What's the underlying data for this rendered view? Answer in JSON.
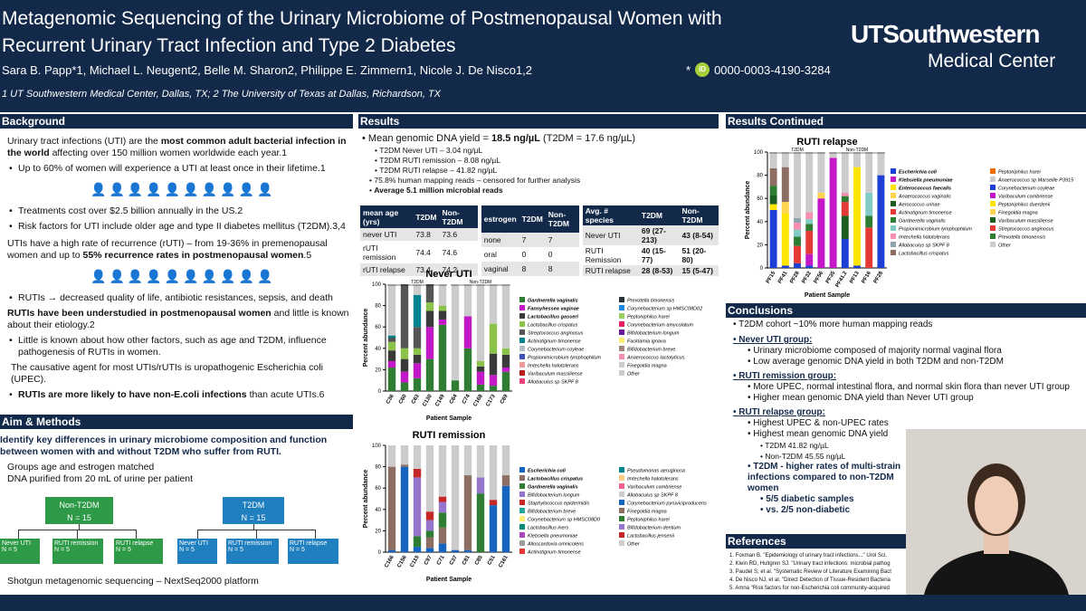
{
  "header": {
    "title_line1": "Metagenomic Sequencing of the Urinary Microbiome of Postmenopausal Women with",
    "title_line2": "Recurrent Urinary Tract Infection and Type 2 Diabetes",
    "authors": "Sara B. Papp*1, Michael L. Neugent2, Belle M. Sharon2, Philippe E. Zimmern1, Nicole J. De Nisco1,2",
    "affiliations": "1 UT Southwestern Medical Center, Dallas, TX; 2 The University of Texas at Dallas, Richardson, TX",
    "orcid_star": "*",
    "orcid_badge": "iD",
    "orcid": "0000-0003-4190-3284",
    "logo_line1": "UTSouthwestern",
    "logo_line2": "Medical Center"
  },
  "background": {
    "heading": "Background",
    "p1a": "Urinary tract infections (UTI) are the ",
    "p1b": "most common adult bacterial infection in the world",
    "p1c": " affecting over 150 million women worldwide each year.1",
    "b1": "Up to 60% of women will experience a UTI at least once in their lifetime.1",
    "b2": "Treatments cost over $2.5 billion annually in the US.2",
    "b3": "Risk factors for UTI include older age and type II diabetes mellitus (T2DM).3,4",
    "p2a": "UTIs have a high rate of recurrence (rUTI) – from 19-36% in premenopausal women and up to ",
    "p2b": "55% recurrence rates in postmenopausal women",
    "p2c": ".5",
    "b4": "RUTIs → decreased quality of life, antibiotic resistances, sepsis, and death",
    "p3a": "RUTIs have been understudied in postmenopausal women",
    "p3b": " and little is known about their etiology.2",
    "b5": "Little is known about how other factors, such as age and T2DM, influence pathogenesis of RUTIs in women.",
    "p4": "The causative agent for most UTIs/rUTIs is uropathogenic Escherichia coli (UPEC).",
    "b6a": "RUTIs are more likely to have non-E.coli infections",
    "b6b": " than acute UTIs.6"
  },
  "aim": {
    "heading": "Aim & Methods",
    "p1": "Identify key differences in urinary microbiome composition and function between women with and without T2DM who suffer from RUTI.",
    "m1": "Groups age and estrogen matched",
    "m2": "DNA purified from 20 mL of urine per patient",
    "nont2dm": "Non-T2DM",
    "nont2dm_n": "N = 15",
    "t2dm": "T2DM",
    "t2dm_n": "N = 15",
    "g1": "Never UTI",
    "g1n": "N = 5",
    "g2": "RUTI remission",
    "g2n": "N = 5",
    "g3": "RUTI relapse",
    "g3n": "N = 5",
    "shotgun": "Shotgun metagenomic sequencing – NextSeq2000 platform"
  },
  "results": {
    "heading": "Results",
    "yield_a": "Mean genomic DNA yield = ",
    "yield_b": "18.5 ng/µL",
    "yield_c": " (T2DM = 17.6 ng/µL)",
    "s1": "T2DM Never UTI – 3.04 ng/µL",
    "s2": "T2DM RUTI remission – 8.08 ng/µL",
    "s3": "T2DM RUTI relapse – 41.82 ng/µL",
    "s4": "75.8% human mapping reads – censored for further analysis",
    "s5": "Average 5.1 million microbial reads",
    "table1": {
      "head": [
        "mean age (yrs)",
        "T2DM",
        "Non-T2DM"
      ],
      "rows": [
        [
          "never UTI",
          "73.8",
          "73.6"
        ],
        [
          "rUTI remission",
          "74.4",
          "74.6"
        ],
        [
          "rUTI relapse",
          "73.4",
          "74.2"
        ]
      ]
    },
    "table2": {
      "head": [
        "estrogen",
        "T2DM",
        "Non-T2DM"
      ],
      "rows": [
        [
          "none",
          "7",
          "7"
        ],
        [
          "oral",
          "0",
          "0"
        ],
        [
          "vaginal",
          "8",
          "8"
        ]
      ]
    },
    "table3": {
      "head": [
        "Avg. # species",
        "T2DM",
        "Non-T2DM"
      ],
      "rows": [
        [
          "Never UTI",
          "69 (27-213)",
          "43 (8-54)"
        ],
        [
          "RUTI Remission",
          "40 (15-77)",
          "51 (20-80)"
        ],
        [
          "RUTI relapse",
          "28 (8-53)",
          "15 (5-47)"
        ]
      ]
    }
  },
  "chart_data": [
    {
      "type": "bar",
      "stacked": true,
      "title": "Never UTI",
      "xlabel": "Patient Sample",
      "ylabel": "Percent abundance",
      "ylim": [
        0,
        100
      ],
      "group_labels": [
        "T2DM",
        "Non-T2DM"
      ],
      "categories": [
        "C36",
        "C60",
        "C63",
        "C130",
        "C149",
        "C64",
        "C74",
        "C168",
        "C173",
        "C69"
      ],
      "colors": [
        "#2e7d32",
        "#c218c8",
        "#3a3a3a",
        "#8bc34a",
        "#555555",
        "#00838f",
        "#b0bec5",
        "#3f51b5",
        "#ef9a9a",
        "#b71c1c",
        "#ec407a",
        "#263238",
        "#1e88e5",
        "#9ccc65",
        "#e91e63",
        "#6a1b9a",
        "#fff176",
        "#a1887f",
        "#f48fb1",
        "#cccccc"
      ],
      "legend": [
        "Gardnerella vaginalis",
        "Fannyhessea vaginae",
        "Lactobacillus gasseri",
        "Lactobacillus crispatus",
        "Streptococcus anginosus",
        "Actinotignum timonense",
        "Corynebacterium coyleae",
        "Propionimicrobium lymphophilum",
        "Imtechella halotolerans",
        "Varibaculum massiliense",
        "Allobaculus sp SKPF 8",
        "Prevotella timonensis",
        "Corynebacterium sp HMSC08D02",
        "Peptoniphilus harei",
        "Corynebacterium amycolatum",
        "Bifidobacterium longum",
        "Facklamia ignava",
        "Bifidobacterium breve",
        "Anaerococcus lactolyticus",
        "Finegoldia magna",
        "Other"
      ],
      "stacks": [
        [
          22,
          6,
          10,
          8,
          4,
          2,
          48
        ],
        [
          8,
          10,
          12,
          10,
          60,
          0,
          0
        ],
        [
          12,
          14,
          8,
          6,
          20,
          30,
          10
        ],
        [
          30,
          30,
          15,
          8,
          17,
          0,
          0
        ],
        [
          62,
          5,
          8,
          5,
          0,
          0,
          20
        ],
        [
          10,
          0,
          0,
          0,
          0,
          0,
          90
        ],
        [
          40,
          30,
          0,
          0,
          0,
          0,
          30
        ],
        [
          6,
          12,
          5,
          5,
          0,
          0,
          72
        ],
        [
          5,
          10,
          20,
          28,
          0,
          0,
          37
        ],
        [
          18,
          4,
          12,
          6,
          0,
          0,
          60
        ]
      ]
    },
    {
      "type": "bar",
      "stacked": true,
      "title": "RUTI remission",
      "xlabel": "Patient Sample",
      "ylabel": "Percent abundance",
      "ylim": [
        0,
        100
      ],
      "group_labels": [],
      "categories": [
        "C166",
        "C156",
        "C115",
        "C97",
        "C71",
        "C37",
        "C81",
        "C85",
        "C51",
        "C161"
      ],
      "colors": [
        "#1565c0",
        "#8d6e63",
        "#2e7d32",
        "#9575cd",
        "#c62828",
        "#26a69a",
        "#fff176",
        "#00897b",
        "#ab47bc",
        "#9e9e9e",
        "#e53935",
        "#00838f",
        "#ffcc80",
        "#f06292",
        "#cccccc"
      ],
      "legend": [
        "Escherichia coli",
        "Lactobacillus crispatus",
        "Gardnerella vaginalis",
        "Bifidobacterium longum",
        "Staphylococcus epidermidis",
        "Bifidobacterium breve",
        "Corynebacterium sp HMSC08D0",
        "Lactobacillus iners",
        "Klebsiella pneumoniae",
        "Alloscardovia omnicolens",
        "Actinotignum timonense",
        "Pseudomonas aeruginosa",
        "Imtechella halotolerans",
        "Varibaculum cambriense",
        "Allobaculus sp SKPF 8",
        "Corynebacterium pyruviciproducens",
        "Finegoldia magna",
        "Peptoniphilus harei",
        "Bifidobacterium dentium",
        "Lactobacillus jensenii",
        "Other"
      ],
      "stacks": [
        [
          2,
          78,
          0,
          0,
          0,
          20
        ],
        [
          80,
          2,
          0,
          0,
          0,
          18
        ],
        [
          5,
          0,
          10,
          55,
          8,
          22
        ],
        [
          4,
          10,
          6,
          10,
          8,
          62
        ],
        [
          8,
          15,
          14,
          10,
          5,
          48
        ],
        [
          2,
          0,
          0,
          0,
          0,
          98
        ],
        [
          2,
          70,
          0,
          0,
          0,
          28
        ],
        [
          0,
          0,
          55,
          15,
          0,
          30
        ],
        [
          44,
          0,
          0,
          0,
          5,
          51
        ],
        [
          62,
          10,
          0,
          0,
          0,
          28
        ]
      ]
    },
    {
      "type": "bar",
      "stacked": true,
      "title": "RUTI relapse",
      "xlabel": "Patient Sample",
      "ylabel": "Percent abundance",
      "ylim": [
        0,
        100
      ],
      "group_labels": [
        "T2DM",
        "Non-T2DM"
      ],
      "categories": [
        "PF15",
        "PF41",
        "PF28",
        "PF32",
        "PF56",
        "PF35",
        "PF41.2",
        "PF13",
        "PF16",
        "PF28"
      ],
      "colors": [
        "#1e3fd6",
        "#c218c8",
        "#ffe600",
        "#ffd54f",
        "#1b5e20",
        "#e53935",
        "#2e7d32",
        "#80cbc4",
        "#f48fb1",
        "#90a4ae",
        "#8d6e63",
        "#ef6c00",
        "#cccccc"
      ],
      "legend": [
        "Escherichia coli",
        "Klebsiella pneumoniae",
        "Enterococcus faecalis",
        "Anaerococcus vaginalis",
        "Aerococcus urinae",
        "Actinotignum timonense",
        "Gardnerella vaginalis",
        "Propionimicrobium lymphophilum",
        "Imtechella halotolerans",
        "Allobaculus sp SKPF 8",
        "Lactobacillus crispatus",
        "Peptoniphilus harei",
        "Anaerococcus sp Marseille P3915",
        "Corynebacterium coyleae",
        "Varibaculum cambriense",
        "Peptoniphilus duerdenii",
        "Finegoldia magna",
        "Varibaculum massiliense",
        "Streptococcus anginosus",
        "Prevotella timonensis",
        "Other"
      ],
      "stacks": [
        [
          50,
          0,
          5,
          0,
          8,
          0,
          8,
          0,
          0,
          0,
          15,
          0,
          14
        ],
        [
          2,
          0,
          45,
          10,
          0,
          0,
          0,
          0,
          0,
          0,
          30,
          0,
          13
        ],
        [
          4,
          0,
          0,
          0,
          0,
          15,
          8,
          6,
          6,
          4,
          0,
          0,
          57
        ],
        [
          2,
          10,
          0,
          0,
          0,
          20,
          6,
          4,
          6,
          0,
          0,
          0,
          52
        ],
        [
          0,
          60,
          0,
          5,
          0,
          0,
          0,
          0,
          0,
          0,
          0,
          0,
          35
        ],
        [
          0,
          95,
          0,
          0,
          0,
          0,
          0,
          0,
          0,
          0,
          0,
          0,
          5
        ],
        [
          25,
          0,
          0,
          0,
          20,
          12,
          5,
          0,
          3,
          0,
          0,
          0,
          35
        ],
        [
          2,
          0,
          85,
          0,
          0,
          0,
          0,
          0,
          0,
          0,
          0,
          0,
          13
        ],
        [
          0,
          0,
          0,
          0,
          0,
          35,
          10,
          20,
          0,
          0,
          0,
          0,
          35
        ],
        [
          80,
          0,
          0,
          0,
          0,
          0,
          0,
          0,
          0,
          0,
          0,
          0,
          20
        ]
      ]
    }
  ],
  "results_continued": {
    "heading": "Results Continued"
  },
  "conclusions": {
    "heading": "Conclusions",
    "c1": "T2DM cohort ~10% more human mapping reads",
    "g1": "Never UTI group:",
    "g1a": "Urinary microbiome composed of majority normal vaginal flora",
    "g1b": "Low average genomic DNA yield in both T2DM and non-T2DM",
    "g2": "RUTI remission group:",
    "g2a": "More UPEC, normal intestinal flora, and normal skin flora than never UTI group",
    "g2b": "Higher mean genomic DNA yield than Never UTI group",
    "g3": "RUTI relapse group:",
    "g3a": "Highest UPEC & non-UPEC rates",
    "g3b": "Highest mean genomic DNA yield",
    "g3c": "T2DM 41.82 ng/µL",
    "g3d": "Non-T2DM 45.55 ng/µL",
    "g3e": "T2DM - higher rates of multi-strain infections compared to non-T2DM women",
    "g3f": "5/5 diabetic samples",
    "g3g": "vs. 2/5 non-diabetic"
  },
  "references": {
    "heading": "References",
    "items": [
      "Foxman B. \"Epidemiology of urinary tract infections...\" Urol Sci.",
      "Klein RD, Hultgren SJ. \"Urinary tract infections: microbial pathog",
      "Paudel S, et al. \"Systematic Review of Literature Examining Bact",
      "De Nisco NJ, et al. \"Direct Detection of Tissue-Resident Bacteria",
      "Amna \"Risk factors for non-Escherichia coli community-acquired"
    ]
  }
}
